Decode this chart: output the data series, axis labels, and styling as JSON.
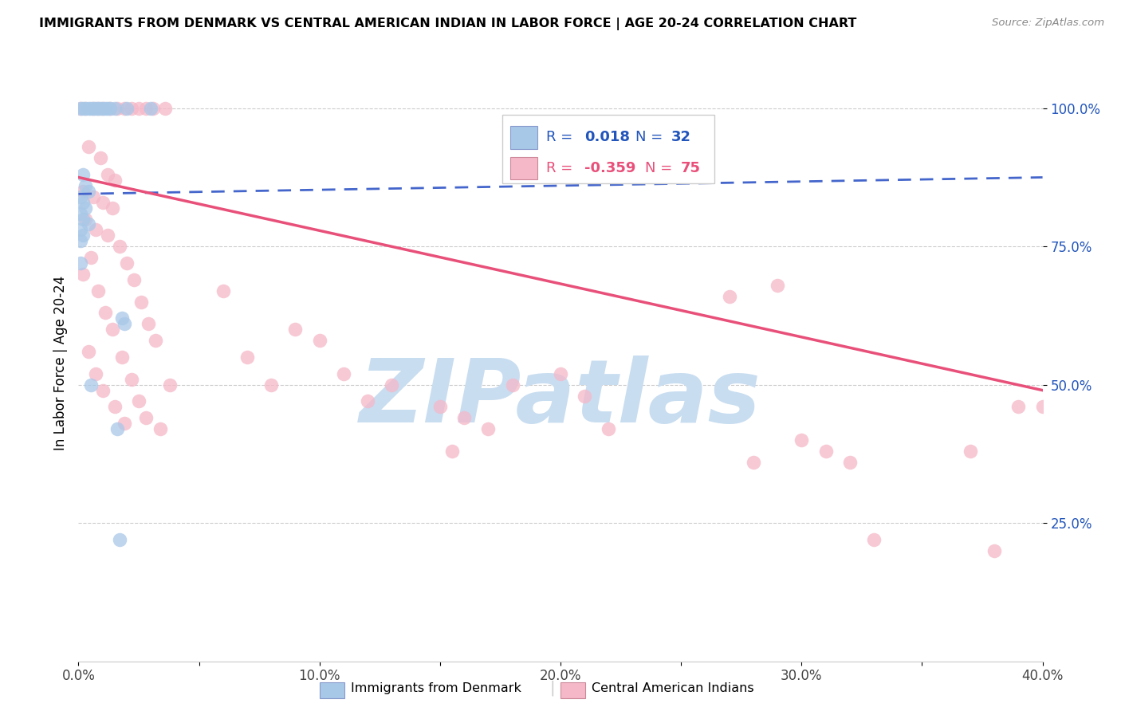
{
  "title": "IMMIGRANTS FROM DENMARK VS CENTRAL AMERICAN INDIAN IN LABOR FORCE | AGE 20-24 CORRELATION CHART",
  "source": "Source: ZipAtlas.com",
  "ylabel": "In Labor Force | Age 20-24",
  "xlim": [
    0.0,
    0.4
  ],
  "ylim": [
    0.0,
    1.08
  ],
  "xtick_labels": [
    "0.0%",
    "",
    "10.0%",
    "",
    "20.0%",
    "",
    "30.0%",
    "",
    "40.0%"
  ],
  "xtick_values": [
    0.0,
    0.05,
    0.1,
    0.15,
    0.2,
    0.25,
    0.3,
    0.35,
    0.4
  ],
  "ytick_labels": [
    "25.0%",
    "50.0%",
    "75.0%",
    "100.0%"
  ],
  "ytick_values": [
    0.25,
    0.5,
    0.75,
    1.0
  ],
  "blue_color": "#a8c8e8",
  "pink_color": "#f5b8c8",
  "blue_line_color": "#4466cc",
  "pink_line_color": "#e8507a",
  "blue_line_x": [
    0.0,
    0.4
  ],
  "blue_line_y": [
    0.845,
    0.875
  ],
  "pink_line_x": [
    0.0,
    0.4
  ],
  "pink_line_y": [
    0.875,
    0.49
  ],
  "watermark_color": "#c8ddf0",
  "blue_scatter": [
    [
      0.001,
      1.0
    ],
    [
      0.002,
      1.0
    ],
    [
      0.003,
      1.0
    ],
    [
      0.004,
      1.0
    ],
    [
      0.005,
      1.0
    ],
    [
      0.006,
      1.0
    ],
    [
      0.007,
      1.0
    ],
    [
      0.008,
      1.0
    ],
    [
      0.009,
      1.0
    ],
    [
      0.01,
      1.0
    ],
    [
      0.011,
      1.0
    ],
    [
      0.012,
      1.0
    ],
    [
      0.013,
      1.0
    ],
    [
      0.015,
      1.0
    ],
    [
      0.02,
      1.0
    ],
    [
      0.03,
      1.0
    ],
    [
      0.002,
      0.88
    ],
    [
      0.003,
      0.86
    ],
    [
      0.004,
      0.85
    ],
    [
      0.001,
      0.84
    ],
    [
      0.002,
      0.83
    ],
    [
      0.003,
      0.82
    ],
    [
      0.001,
      0.81
    ],
    [
      0.002,
      0.8
    ],
    [
      0.004,
      0.79
    ],
    [
      0.001,
      0.78
    ],
    [
      0.002,
      0.77
    ],
    [
      0.001,
      0.76
    ],
    [
      0.001,
      0.72
    ],
    [
      0.018,
      0.62
    ],
    [
      0.019,
      0.61
    ],
    [
      0.005,
      0.5
    ],
    [
      0.016,
      0.42
    ],
    [
      0.017,
      0.22
    ]
  ],
  "pink_scatter": [
    [
      0.001,
      1.0
    ],
    [
      0.003,
      1.0
    ],
    [
      0.006,
      1.0
    ],
    [
      0.008,
      1.0
    ],
    [
      0.01,
      1.0
    ],
    [
      0.013,
      1.0
    ],
    [
      0.016,
      1.0
    ],
    [
      0.019,
      1.0
    ],
    [
      0.022,
      1.0
    ],
    [
      0.025,
      1.0
    ],
    [
      0.028,
      1.0
    ],
    [
      0.031,
      1.0
    ],
    [
      0.036,
      1.0
    ],
    [
      0.004,
      0.93
    ],
    [
      0.009,
      0.91
    ],
    [
      0.012,
      0.88
    ],
    [
      0.015,
      0.87
    ],
    [
      0.002,
      0.85
    ],
    [
      0.006,
      0.84
    ],
    [
      0.01,
      0.83
    ],
    [
      0.014,
      0.82
    ],
    [
      0.003,
      0.8
    ],
    [
      0.007,
      0.78
    ],
    [
      0.012,
      0.77
    ],
    [
      0.017,
      0.75
    ],
    [
      0.005,
      0.73
    ],
    [
      0.02,
      0.72
    ],
    [
      0.002,
      0.7
    ],
    [
      0.023,
      0.69
    ],
    [
      0.008,
      0.67
    ],
    [
      0.026,
      0.65
    ],
    [
      0.011,
      0.63
    ],
    [
      0.029,
      0.61
    ],
    [
      0.014,
      0.6
    ],
    [
      0.032,
      0.58
    ],
    [
      0.004,
      0.56
    ],
    [
      0.018,
      0.55
    ],
    [
      0.007,
      0.52
    ],
    [
      0.022,
      0.51
    ],
    [
      0.038,
      0.5
    ],
    [
      0.01,
      0.49
    ],
    [
      0.025,
      0.47
    ],
    [
      0.015,
      0.46
    ],
    [
      0.028,
      0.44
    ],
    [
      0.019,
      0.43
    ],
    [
      0.034,
      0.42
    ],
    [
      0.06,
      0.67
    ],
    [
      0.07,
      0.55
    ],
    [
      0.08,
      0.5
    ],
    [
      0.09,
      0.6
    ],
    [
      0.1,
      0.58
    ],
    [
      0.11,
      0.52
    ],
    [
      0.12,
      0.47
    ],
    [
      0.13,
      0.5
    ],
    [
      0.15,
      0.46
    ],
    [
      0.155,
      0.38
    ],
    [
      0.16,
      0.44
    ],
    [
      0.17,
      0.42
    ],
    [
      0.18,
      0.5
    ],
    [
      0.2,
      0.52
    ],
    [
      0.21,
      0.48
    ],
    [
      0.22,
      0.42
    ],
    [
      0.27,
      0.66
    ],
    [
      0.28,
      0.36
    ],
    [
      0.29,
      0.68
    ],
    [
      0.3,
      0.4
    ],
    [
      0.31,
      0.38
    ],
    [
      0.32,
      0.36
    ],
    [
      0.33,
      0.22
    ],
    [
      0.37,
      0.38
    ],
    [
      0.38,
      0.2
    ],
    [
      0.39,
      0.46
    ],
    [
      0.4,
      0.46
    ]
  ],
  "figsize": [
    14.06,
    8.92
  ],
  "dpi": 100
}
